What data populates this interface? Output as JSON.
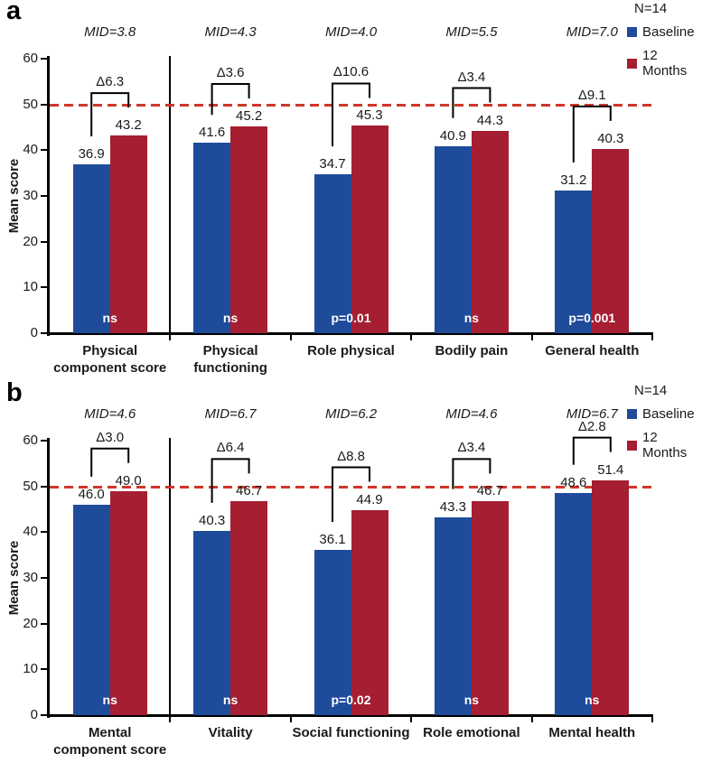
{
  "figure": {
    "background": "#ffffff",
    "axis_color": "#000000",
    "series": [
      {
        "name": "Baseline",
        "color": "#1f4b9b"
      },
      {
        "name": "12 Months",
        "color": "#a51e32"
      }
    ],
    "reference_line": {
      "value": 50,
      "color": "#cf372a",
      "style": "dashed"
    }
  },
  "chart_data": [
    {
      "type": "bar",
      "panel_label": "a",
      "n_label": "N=14",
      "legend": [
        "Baseline",
        "12 Months"
      ],
      "legend_position": "top-right",
      "ylabel": "Mean score",
      "ylim": [
        0,
        60
      ],
      "yticks": [
        0,
        10,
        20,
        30,
        40,
        50,
        60
      ],
      "reference_line": 50,
      "grid": false,
      "groups": [
        {
          "category_lines": [
            "Physical",
            "component score"
          ],
          "mid_label": "MID=3.8",
          "baseline_value": 36.9,
          "months12_value": 43.2,
          "baseline_label": "36.9",
          "months12_label": "43.2",
          "delta_label": "Δ6.3",
          "significance": "ns"
        },
        {
          "category_lines": [
            "Physical",
            "functioning"
          ],
          "mid_label": "MID=4.3",
          "baseline_value": 41.6,
          "months12_value": 45.2,
          "baseline_label": "41.6",
          "months12_label": "45.2",
          "delta_label": "Δ3.6",
          "significance": "ns"
        },
        {
          "category_lines": [
            "Role physical"
          ],
          "mid_label": "MID=4.0",
          "baseline_value": 34.7,
          "months12_value": 45.3,
          "baseline_label": "34.7",
          "months12_label": "45.3",
          "delta_label": "Δ10.6",
          "significance": "p=0.01"
        },
        {
          "category_lines": [
            "Bodily pain"
          ],
          "mid_label": "MID=5.5",
          "baseline_value": 40.9,
          "months12_value": 44.3,
          "baseline_label": "40.9",
          "months12_label": "44.3",
          "delta_label": "Δ3.4",
          "significance": "ns"
        },
        {
          "category_lines": [
            "General health"
          ],
          "mid_label": "MID=7.0",
          "baseline_value": 31.2,
          "months12_value": 40.3,
          "baseline_label": "31.2",
          "months12_label": "40.3",
          "delta_label": "Δ9.1",
          "significance": "p=0.001"
        }
      ]
    },
    {
      "type": "bar",
      "panel_label": "b",
      "n_label": "N=14",
      "legend": [
        "Baseline",
        "12 Months"
      ],
      "legend_position": "top-right",
      "ylabel": "Mean score",
      "ylim": [
        0,
        60
      ],
      "yticks": [
        0,
        10,
        20,
        30,
        40,
        50,
        60
      ],
      "reference_line": 50,
      "grid": false,
      "groups": [
        {
          "category_lines": [
            "Mental",
            "component score"
          ],
          "mid_label": "MID=4.6",
          "baseline_value": 46.0,
          "months12_value": 49.0,
          "baseline_label": "46.0",
          "months12_label": "49.0",
          "delta_label": "Δ3.0",
          "significance": "ns"
        },
        {
          "category_lines": [
            "Vitality"
          ],
          "mid_label": "MID=6.7",
          "baseline_value": 40.3,
          "months12_value": 46.7,
          "baseline_label": "40.3",
          "months12_label": "46.7",
          "delta_label": "Δ6.4",
          "significance": "ns"
        },
        {
          "category_lines": [
            "Social functioning"
          ],
          "mid_label": "MID=6.2",
          "baseline_value": 36.1,
          "months12_value": 44.9,
          "baseline_label": "36.1",
          "months12_label": "44.9",
          "delta_label": "Δ8.8",
          "significance": "p=0.02"
        },
        {
          "category_lines": [
            "Role emotional"
          ],
          "mid_label": "MID=4.6",
          "baseline_value": 43.3,
          "months12_value": 46.7,
          "baseline_label": "43.3",
          "months12_label": "46.7",
          "delta_label": "Δ3.4",
          "significance": "ns"
        },
        {
          "category_lines": [
            "Mental health"
          ],
          "mid_label": "MID=6.7",
          "baseline_value": 48.6,
          "months12_value": 51.4,
          "baseline_label": "48.6",
          "months12_label": "51.4",
          "delta_label": "Δ2.8",
          "significance": "ns"
        }
      ]
    }
  ]
}
